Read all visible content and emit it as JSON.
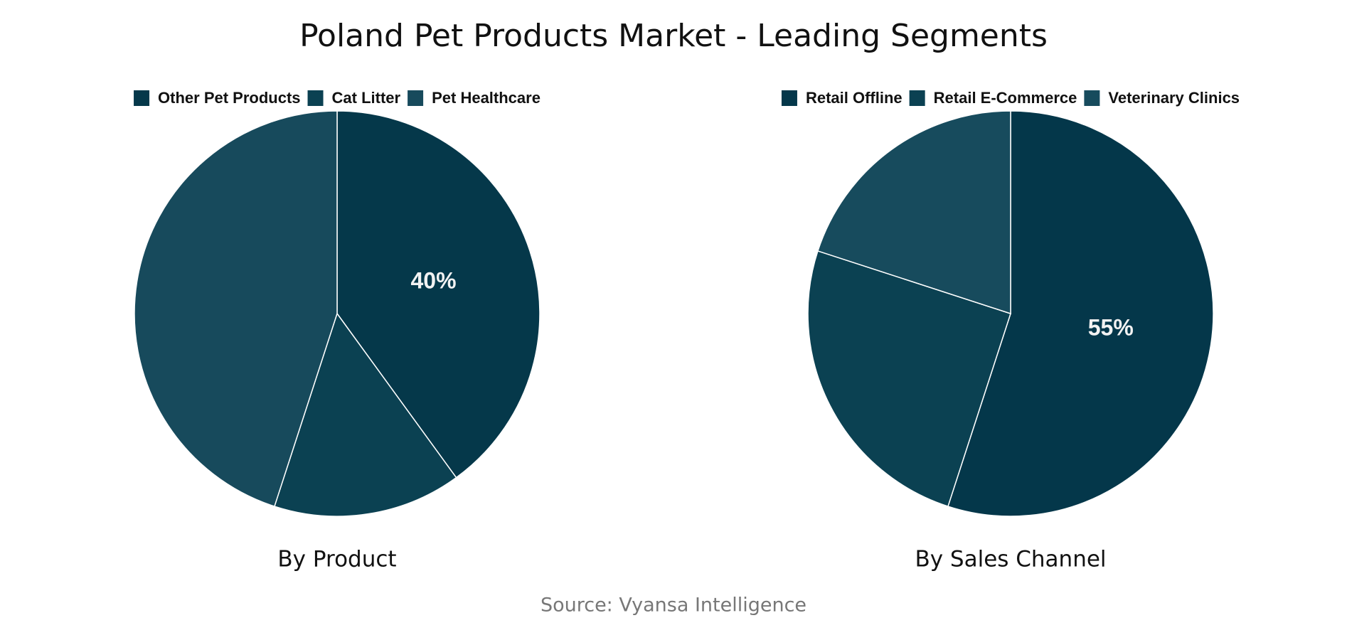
{
  "title": "Poland Pet Products Market - Leading Segments",
  "source": "Source: Vyansa Intelligence",
  "chart_data": [
    {
      "type": "pie",
      "title": "By Product",
      "categories": [
        "Other Pet Products",
        "Cat Litter",
        "Pet Healthcare"
      ],
      "values": [
        40,
        15,
        45
      ],
      "value_labels": [
        "40%",
        null,
        null
      ],
      "colors": [
        "#05384a",
        "#0b4152",
        "#174a5c"
      ]
    },
    {
      "type": "pie",
      "title": "By Sales Channel",
      "categories": [
        "Retail Offline",
        "Retail E-Commerce",
        "Veterinary Clinics"
      ],
      "values": [
        55,
        25,
        20
      ],
      "value_labels": [
        "55%",
        null,
        null
      ],
      "colors": [
        "#04374a",
        "#0b4152",
        "#174b5d"
      ]
    }
  ]
}
